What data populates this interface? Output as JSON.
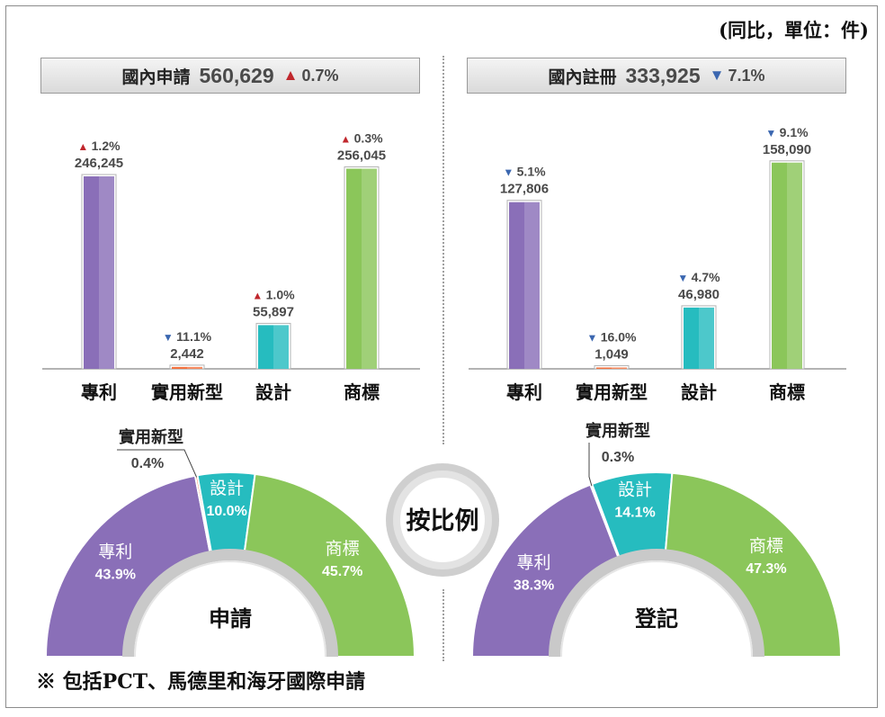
{
  "unit_note": "(同比，單位：件)",
  "footnote": "※ 包括PCT、馬德里和海牙國際申請",
  "center_label": "按比例",
  "colors": {
    "patent": "#8a6fb8",
    "utility": "#f47340",
    "design": "#26bcbf",
    "trademark": "#8bc65a",
    "up": "#c0272d",
    "down": "#3b67b0"
  },
  "left_panel": {
    "title": "國內申請",
    "total": "560,629",
    "change_dir": "up",
    "change_symbol": "▲",
    "change": "0.7%"
  },
  "right_panel": {
    "title": "國內註冊",
    "total": "333,925",
    "change_dir": "down",
    "change_symbol": "▼",
    "change": "7.1%"
  },
  "chart_data": [
    {
      "type": "bar",
      "categories": [
        "專利",
        "實用新型",
        "設計",
        "商標"
      ],
      "values": [
        246245,
        2442,
        55897,
        256045
      ],
      "value_labels": [
        "246,245",
        "2,442",
        "55,897",
        "256,045"
      ],
      "change_labels": [
        "1.2%",
        "11.1%",
        "1.0%",
        "0.3%"
      ],
      "change_dirs": [
        "up",
        "down",
        "up",
        "up"
      ],
      "ylim": [
        0,
        290000
      ]
    },
    {
      "type": "bar",
      "categories": [
        "專利",
        "實用新型",
        "設計",
        "商標"
      ],
      "values": [
        127806,
        1049,
        46980,
        158090
      ],
      "value_labels": [
        "127,806",
        "1,049",
        "46,980",
        "158,090"
      ],
      "change_labels": [
        "5.1%",
        "16.0%",
        "4.7%",
        "9.1%"
      ],
      "change_dirs": [
        "down",
        "down",
        "down",
        "down"
      ],
      "ylim": [
        0,
        180000
      ]
    },
    {
      "type": "pie",
      "title": "申請",
      "categories": [
        "專利",
        "實用新型",
        "設計",
        "商標"
      ],
      "values": [
        43.9,
        0.4,
        10.0,
        45.7
      ],
      "labels": [
        "43.9%",
        "0.4%",
        "10.0%",
        "45.7%"
      ],
      "callout_label": "實用新型"
    },
    {
      "type": "pie",
      "title": "登記",
      "categories": [
        "專利",
        "實用新型",
        "設計",
        "商標"
      ],
      "values": [
        38.3,
        0.3,
        14.1,
        47.3
      ],
      "labels": [
        "38.3%",
        "0.3%",
        "14.1%",
        "47.3%"
      ],
      "callout_label": "實用新型"
    }
  ]
}
